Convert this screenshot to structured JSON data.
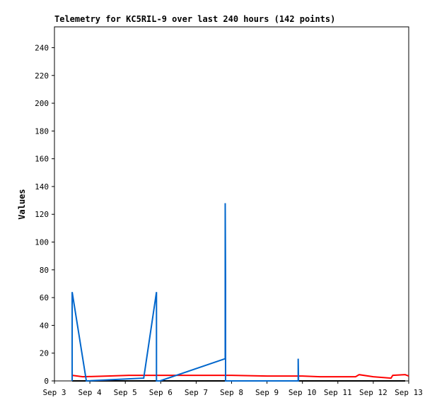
{
  "chart_data": {
    "type": "line",
    "title": "Telemetry for KC5RIL-9 over last 240 hours (142 points)",
    "y_label": "Values",
    "xlim": [
      3,
      13
    ],
    "ylim": [
      0,
      255
    ],
    "xticks": [
      {
        "value": 3,
        "label": "Sep 3"
      },
      {
        "value": 4,
        "label": "Sep 4"
      },
      {
        "value": 5,
        "label": "Sep 5"
      },
      {
        "value": 6,
        "label": "Sep 6"
      },
      {
        "value": 7,
        "label": "Sep 7"
      },
      {
        "value": 8,
        "label": "Sep 8"
      },
      {
        "value": 9,
        "label": "Sep 9"
      },
      {
        "value": 10,
        "label": "Sep 10"
      },
      {
        "value": 11,
        "label": "Sep 11"
      },
      {
        "value": 12,
        "label": "Sep 12"
      },
      {
        "value": 13,
        "label": "Sep 13"
      }
    ],
    "yticks": [
      0,
      20,
      40,
      60,
      80,
      100,
      120,
      140,
      160,
      180,
      200,
      220,
      240
    ],
    "series": [
      {
        "color": "#000000",
        "x": [
          3.5,
          12.9
        ],
        "values": [
          0,
          0
        ]
      },
      {
        "color": "#ff0000",
        "x": [
          3.5,
          3.8,
          4.5,
          5.1,
          5.9,
          7,
          8,
          9,
          10,
          10.5,
          11,
          11.5,
          11.6,
          12,
          12.5,
          12.55,
          12.9,
          13
        ],
        "values": [
          4,
          3,
          3.5,
          4,
          4,
          4,
          4,
          3.5,
          3.5,
          3,
          3,
          3,
          4.5,
          3,
          2,
          4,
          4.5,
          3.5
        ]
      },
      {
        "color": "#0066cc",
        "x": [
          3.5,
          3.5,
          3.9,
          5.52,
          5.88,
          5.88,
          5.98,
          7.82,
          7.82,
          7.83,
          7.83,
          9.88,
          9.88,
          9.89
        ],
        "values": [
          0,
          64,
          0,
          2,
          64,
          0,
          0,
          16,
          128,
          72,
          0,
          0,
          16,
          0
        ]
      }
    ]
  }
}
